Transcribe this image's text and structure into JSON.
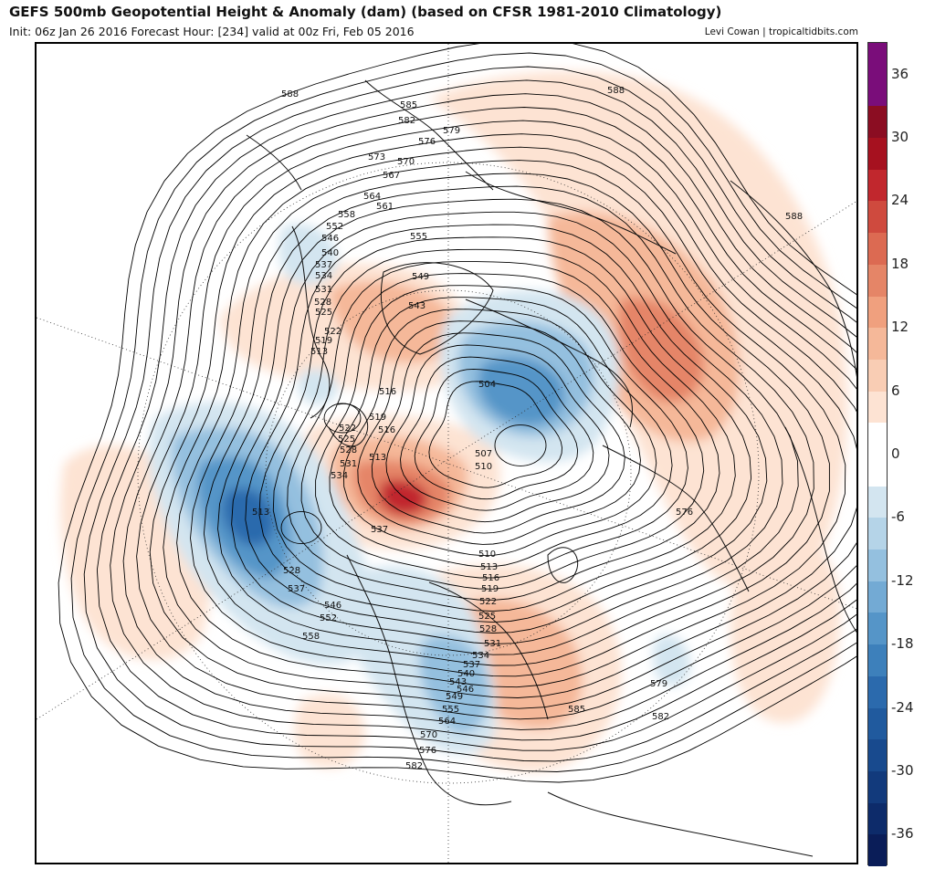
{
  "header": {
    "title": "GEFS 500mb Geopotential Height & Anomaly (dam) (based on CFSR 1981-2010 Climatology)",
    "subtitle": "Init: 06z Jan 26 2016   Forecast Hour: [234]   valid at 00z Fri, Feb 05 2016",
    "credit": "Levi Cowan | tropicaltidbits.com"
  },
  "colorbar": {
    "tick_labels": [
      "36",
      "30",
      "24",
      "18",
      "12",
      "6",
      "0",
      "-6",
      "-12",
      "-18",
      "-24",
      "-30",
      "-36"
    ],
    "tick_values": [
      36,
      30,
      24,
      18,
      12,
      6,
      0,
      -6,
      -12,
      -18,
      -24,
      -30,
      -36
    ],
    "range": [
      -39,
      39
    ],
    "colors": [
      {
        "from": 33,
        "to": 39,
        "color": "#7a0d7a"
      },
      {
        "from": 30,
        "to": 33,
        "color": "#8b0d22"
      },
      {
        "from": 27,
        "to": 30,
        "color": "#a6111f"
      },
      {
        "from": 24,
        "to": 27,
        "color": "#c1272d"
      },
      {
        "from": 21,
        "to": 24,
        "color": "#cf4a3e"
      },
      {
        "from": 18,
        "to": 21,
        "color": "#dc6a52"
      },
      {
        "from": 15,
        "to": 18,
        "color": "#e58567"
      },
      {
        "from": 12,
        "to": 15,
        "color": "#f0a07e"
      },
      {
        "from": 9,
        "to": 12,
        "color": "#f5b899"
      },
      {
        "from": 6,
        "to": 9,
        "color": "#f9cdb4"
      },
      {
        "from": 3,
        "to": 6,
        "color": "#fde3d3"
      },
      {
        "from": -3,
        "to": 3,
        "color": "#ffffff"
      },
      {
        "from": -6,
        "to": -3,
        "color": "#d3e5f0"
      },
      {
        "from": -9,
        "to": -6,
        "color": "#b5d4e8"
      },
      {
        "from": -12,
        "to": -9,
        "color": "#94c0df"
      },
      {
        "from": -15,
        "to": -12,
        "color": "#73aad4"
      },
      {
        "from": -18,
        "to": -15,
        "color": "#5595c8"
      },
      {
        "from": -21,
        "to": -18,
        "color": "#3d80bb"
      },
      {
        "from": -24,
        "to": -21,
        "color": "#2b6aad"
      },
      {
        "from": -27,
        "to": -24,
        "color": "#205a9e"
      },
      {
        "from": -30,
        "to": -27,
        "color": "#184a8e"
      },
      {
        "from": -33,
        "to": -30,
        "color": "#123a7c"
      },
      {
        "from": -36,
        "to": -33,
        "color": "#0d2b6a"
      },
      {
        "from": -39,
        "to": -36,
        "color": "#0a1d58"
      }
    ]
  },
  "map": {
    "projection": "north polar stereographic",
    "anomaly_colors": {
      "pos_light": "#fde3d3",
      "pos_mid": "#f5b899",
      "pos_strong": "#e58567",
      "pos_max": "#c1272d",
      "neg_light": "#d3e5f0",
      "neg_mid": "#94c0df",
      "neg_strong": "#5595c8",
      "neg_max": "#205a9e"
    },
    "contour_labels": [
      "588",
      "585",
      "582",
      "579",
      "576",
      "573",
      "570",
      "567",
      "564",
      "561",
      "558",
      "555",
      "552",
      "549",
      "546",
      "543",
      "540",
      "537",
      "534",
      "531",
      "528",
      "525",
      "522",
      "519",
      "516",
      "513",
      "510",
      "507",
      "504",
      "588",
      "588",
      "576",
      "579",
      "582",
      "585",
      "582",
      "576",
      "570",
      "564",
      "555",
      "549",
      "546",
      "543",
      "540",
      "537",
      "534",
      "531",
      "528",
      "525",
      "522",
      "519",
      "516",
      "513",
      "510",
      "537",
      "513",
      "528",
      "537",
      "546",
      "552",
      "558",
      "534",
      "531",
      "528",
      "525",
      "522",
      "519",
      "516",
      "513"
    ]
  }
}
